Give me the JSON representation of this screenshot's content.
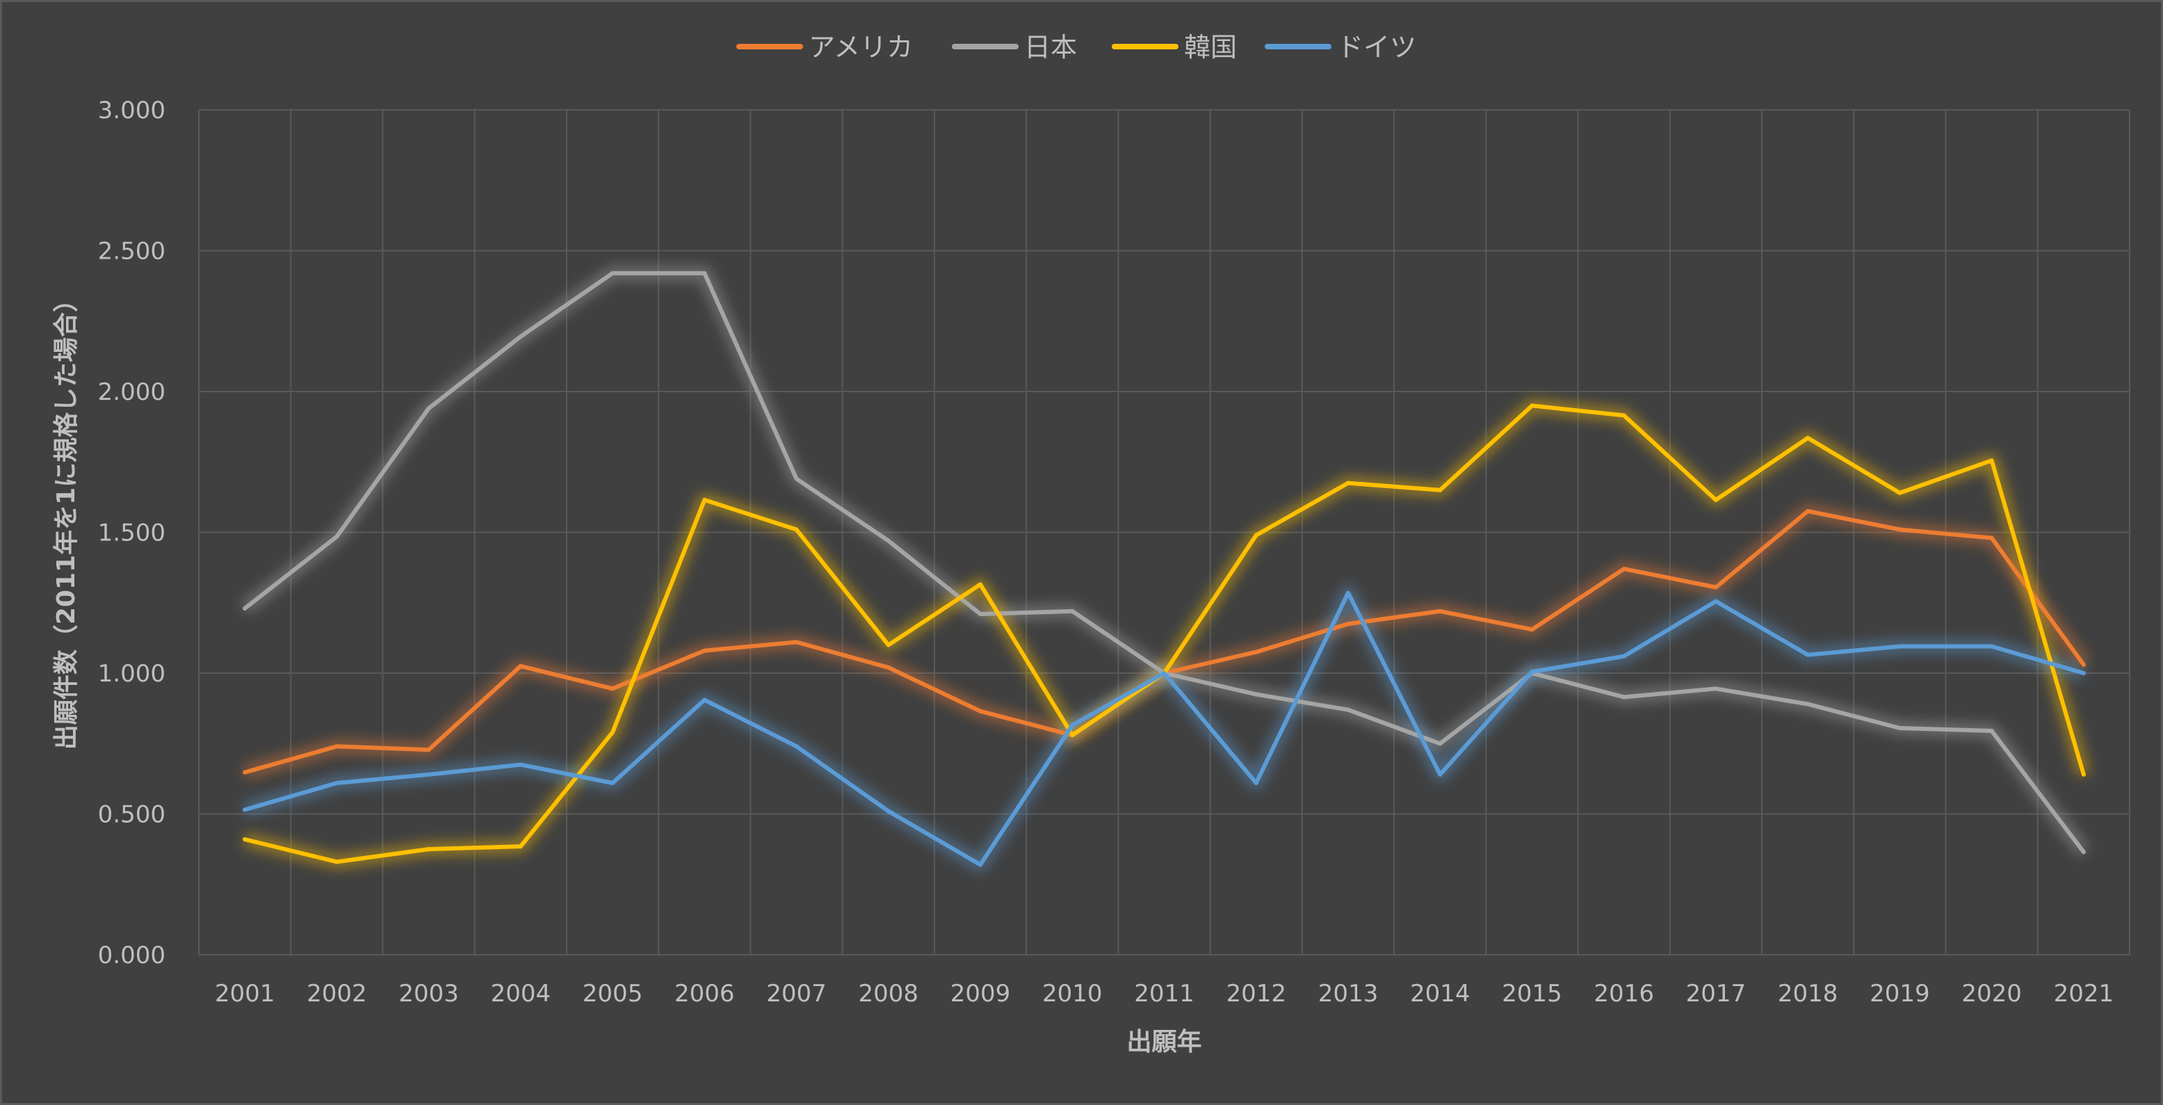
{
  "chart_data": {
    "type": "line",
    "title": "",
    "xlabel": "出願年",
    "ylabel": "出願件数（2011年を1に規格した場合）",
    "ylim": [
      0,
      3
    ],
    "yticks": [
      "0.000",
      "0.500",
      "1.000",
      "1.500",
      "2.000",
      "2.500",
      "3.000"
    ],
    "ytick_values": [
      0,
      0.5,
      1,
      1.5,
      2,
      2.5,
      3
    ],
    "x": [
      "2001",
      "2002",
      "2003",
      "2004",
      "2005",
      "2006",
      "2007",
      "2008",
      "2009",
      "2010",
      "2011",
      "2012",
      "2013",
      "2014",
      "2015",
      "2016",
      "2017",
      "2018",
      "2019",
      "2020",
      "2021"
    ],
    "grid": true,
    "legend_position": "top-center",
    "series": [
      {
        "name": "アメリカ",
        "color": "#ed7d31",
        "values": [
          0.648,
          0.74,
          0.728,
          1.025,
          0.945,
          1.08,
          1.11,
          1.02,
          0.865,
          0.78,
          1.0,
          1.075,
          1.175,
          1.22,
          1.155,
          1.37,
          1.305,
          1.575,
          1.51,
          1.48,
          1.03
        ]
      },
      {
        "name": "日本",
        "color": "#a5a5a5",
        "values": [
          1.23,
          1.485,
          1.94,
          2.195,
          2.42,
          2.42,
          1.69,
          1.47,
          1.21,
          1.22,
          1.0,
          0.925,
          0.87,
          0.75,
          1.0,
          0.915,
          0.945,
          0.89,
          0.805,
          0.795,
          0.365
        ]
      },
      {
        "name": "韓国",
        "color": "#ffc000",
        "values": [
          0.41,
          0.33,
          0.375,
          0.385,
          0.79,
          1.615,
          1.51,
          1.1,
          1.315,
          0.78,
          1.0,
          1.49,
          1.675,
          1.65,
          1.95,
          1.915,
          1.615,
          1.835,
          1.64,
          1.755,
          0.64
        ]
      },
      {
        "name": "ドイツ",
        "color": "#5b9bd5",
        "values": [
          0.515,
          0.61,
          0.64,
          0.675,
          0.61,
          0.905,
          0.74,
          0.51,
          0.32,
          0.815,
          1.0,
          0.61,
          1.285,
          0.64,
          1.005,
          1.06,
          1.255,
          1.065,
          1.095,
          1.095,
          1.0
        ]
      }
    ]
  }
}
